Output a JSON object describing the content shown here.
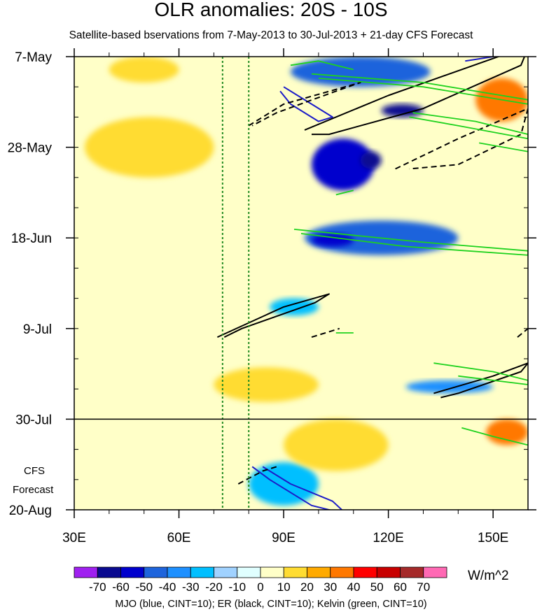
{
  "chart_data": {
    "type": "heatmap",
    "title": "OLR anomalies: 20S - 10S",
    "subtitle": "Satellite-based bservations from 7-May-2013 to 30-Jul-2013 + 21-day CFS Forecast",
    "x_ticks": [
      {
        "value": 30,
        "label": "30E"
      },
      {
        "value": 60,
        "label": "60E"
      },
      {
        "value": 90,
        "label": "90E"
      },
      {
        "value": 120,
        "label": "120E"
      },
      {
        "value": 150,
        "label": "150E"
      }
    ],
    "xlim": [
      30,
      160
    ],
    "y_ticks": [
      {
        "value": 0,
        "label": "7-May"
      },
      {
        "value": 21,
        "label": "28-May"
      },
      {
        "value": 42,
        "label": "18-Jun"
      },
      {
        "value": 63,
        "label": "9-Jul"
      },
      {
        "value": 84,
        "label": "30-Jul"
      },
      {
        "value": 105,
        "label": "20-Aug"
      }
    ],
    "ylim": [
      0,
      105
    ],
    "forecast_start_day": 84,
    "forecast_label_lines": [
      "CFS",
      "Forecast"
    ],
    "reference_longitudes": [
      72.5,
      80
    ],
    "colorbar": {
      "labels": [
        "-70",
        "-60",
        "-50",
        "-40",
        "-30",
        "-20",
        "-10",
        "0",
        "10",
        "20",
        "30",
        "40",
        "50",
        "60",
        "70"
      ],
      "colors": [
        "#a020f0",
        "#0a0a90",
        "#0000cd",
        "#1e64dc",
        "#1e90ff",
        "#00bfff",
        "#a0d2ff",
        "#e0ffff",
        "#ffffc8",
        "#ffdc32",
        "#ffaa00",
        "#ff7800",
        "#ff0000",
        "#c80000",
        "#a52a2a",
        "#ff69b4"
      ],
      "units": "W/m^2"
    },
    "anomaly_features": [
      {
        "lon": [
          92,
          132
        ],
        "day": [
          0,
          7
        ],
        "value": -45
      },
      {
        "lon": [
          118,
          130
        ],
        "day": [
          11,
          14
        ],
        "value": -70
      },
      {
        "lon": [
          98,
          116
        ],
        "day": [
          19,
          31
        ],
        "value": -55
      },
      {
        "lon": [
          112,
          118
        ],
        "day": [
          22,
          26
        ],
        "value": -70
      },
      {
        "lon": [
          96,
          140
        ],
        "day": [
          38,
          46
        ],
        "value": -45
      },
      {
        "lon": [
          98,
          110
        ],
        "day": [
          41,
          44
        ],
        "value": -60
      },
      {
        "lon": [
          86,
          100
        ],
        "day": [
          56,
          60
        ],
        "value": -30
      },
      {
        "lon": [
          125,
          150
        ],
        "day": [
          75,
          78
        ],
        "value": -40
      },
      {
        "lon": [
          80,
          100
        ],
        "day": [
          94,
          104
        ],
        "value": -30
      },
      {
        "lon": [
          40,
          60
        ],
        "day": [
          0,
          6
        ],
        "value": 15
      },
      {
        "lon": [
          33,
          70
        ],
        "day": [
          14,
          28
        ],
        "value": 15
      },
      {
        "lon": [
          145,
          160
        ],
        "day": [
          5,
          15
        ],
        "value": 30
      },
      {
        "lon": [
          148,
          160
        ],
        "day": [
          84,
          90
        ],
        "value": 35
      },
      {
        "lon": [
          70,
          100
        ],
        "day": [
          72,
          80
        ],
        "value": 15
      },
      {
        "lon": [
          90,
          120
        ],
        "day": [
          84,
          96
        ],
        "value": 15
      }
    ],
    "wave_contours": [
      {
        "type": "MJO",
        "sign": "positive",
        "points": [
          [
            90,
            7
          ],
          [
            98,
            11
          ],
          [
            104,
            14
          ],
          [
            100,
            15
          ],
          [
            92,
            11
          ],
          [
            89,
            8
          ]
        ]
      },
      {
        "type": "MJO",
        "sign": "positive",
        "points": [
          [
            81,
            95
          ],
          [
            86,
            98
          ],
          [
            98,
            104
          ],
          [
            108,
            106
          ],
          [
            104,
            103
          ],
          [
            92,
            99
          ],
          [
            84,
            95
          ]
        ]
      },
      {
        "type": "MJO",
        "sign": "positive",
        "points": [
          [
            142,
            1
          ],
          [
            150,
            0
          ],
          [
            154,
            -1
          ]
        ]
      },
      {
        "type": "ER",
        "sign": "positive",
        "points": [
          [
            96,
            17
          ],
          [
            120,
            9
          ],
          [
            155,
            -1
          ],
          [
            160,
            -2
          ],
          [
            158,
            2
          ],
          [
            130,
            12
          ],
          [
            103,
            18
          ],
          [
            98,
            18
          ]
        ]
      },
      {
        "type": "ER",
        "sign": "positive",
        "points": [
          [
            71,
            65
          ],
          [
            90,
            58
          ],
          [
            103,
            55
          ],
          [
            99,
            57
          ],
          [
            78,
            63
          ],
          [
            73,
            65
          ]
        ]
      },
      {
        "type": "ER",
        "sign": "positive",
        "points": [
          [
            133,
            78
          ],
          [
            150,
            74
          ],
          [
            160,
            71
          ],
          [
            158,
            73
          ],
          [
            140,
            78
          ],
          [
            135,
            79
          ]
        ]
      },
      {
        "type": "ER",
        "sign": "negative",
        "points": [
          [
            80,
            16
          ],
          [
            90,
            11
          ],
          [
            112,
            6
          ],
          [
            105,
            8
          ],
          [
            88,
            13
          ],
          [
            81,
            16
          ]
        ]
      },
      {
        "type": "ER",
        "sign": "negative",
        "points": [
          [
            122,
            26
          ],
          [
            140,
            19
          ],
          [
            160,
            12
          ],
          [
            158,
            18
          ],
          [
            140,
            25
          ],
          [
            126,
            26
          ]
        ]
      },
      {
        "type": "ER",
        "sign": "negative",
        "points": [
          [
            77,
            99
          ],
          [
            84,
            96
          ],
          [
            88,
            95
          ]
        ]
      },
      {
        "type": "ER",
        "sign": "negative",
        "points": [
          [
            98,
            65
          ],
          [
            106,
            63
          ]
        ]
      },
      {
        "type": "ER",
        "sign": "negative",
        "points": [
          [
            157,
            65
          ],
          [
            160,
            63
          ]
        ]
      },
      {
        "type": "Kelvin",
        "sign": "positive",
        "points": [
          [
            98,
            4
          ],
          [
            130,
            6
          ],
          [
            160,
            10
          ],
          [
            160,
            11
          ],
          [
            130,
            7
          ],
          [
            100,
            5
          ]
        ]
      },
      {
        "type": "Kelvin",
        "sign": "positive",
        "points": [
          [
            127,
            13
          ],
          [
            145,
            15
          ],
          [
            160,
            18
          ],
          [
            160,
            19
          ],
          [
            140,
            16
          ],
          [
            126,
            14
          ]
        ]
      },
      {
        "type": "Kelvin",
        "sign": "positive",
        "points": [
          [
            93,
            40
          ],
          [
            130,
            43
          ],
          [
            160,
            45
          ],
          [
            160,
            46
          ],
          [
            125,
            44
          ],
          [
            95,
            41
          ]
        ]
      },
      {
        "type": "Kelvin",
        "sign": "positive",
        "points": [
          [
            146,
            20
          ],
          [
            160,
            22
          ]
        ]
      },
      {
        "type": "Kelvin",
        "sign": "positive",
        "points": [
          [
            133,
            71
          ],
          [
            150,
            73
          ],
          [
            160,
            75
          ],
          [
            160,
            76
          ],
          [
            140,
            74
          ]
        ]
      },
      {
        "type": "Kelvin",
        "sign": "positive",
        "points": [
          [
            141,
            86
          ],
          [
            150,
            88
          ],
          [
            160,
            90
          ]
        ]
      },
      {
        "type": "Kelvin",
        "sign": "positive",
        "points": [
          [
            105,
            32
          ],
          [
            110,
            31
          ]
        ]
      },
      {
        "type": "Kelvin",
        "sign": "positive",
        "points": [
          [
            105,
            64
          ],
          [
            110,
            64
          ]
        ]
      },
      {
        "type": "Kelvin",
        "sign": "positive",
        "points": [
          [
            92,
            2
          ],
          [
            100,
            1
          ],
          [
            110,
            3
          ]
        ]
      }
    ],
    "legend_text": "MJO (blue, CINT=10); ER (black, CINT=10); Kelvin (green, CINT=10)"
  },
  "colors": {
    "mjo": "#1c1cc8",
    "er": "#000000",
    "kelvin": "#1ed21e",
    "reference_line": "#228b22",
    "background": "#ffffc8"
  }
}
